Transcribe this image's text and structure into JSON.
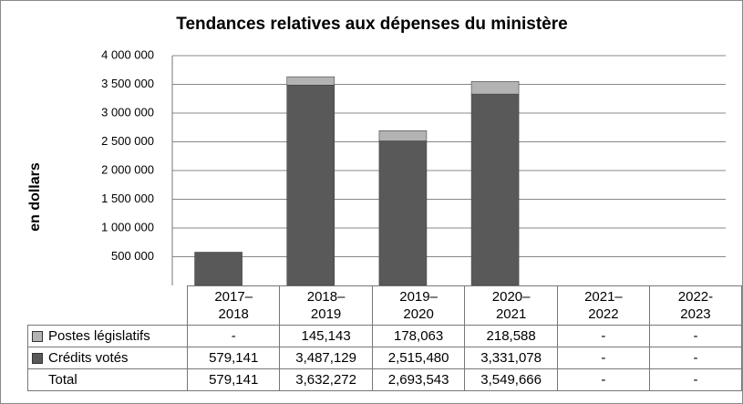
{
  "chart_data": {
    "type": "stacked_bar",
    "title": "Tendances relatives aux dépenses du ministère",
    "y_label": "en dollars",
    "categories": [
      "2017–\n2018",
      "2018–\n2019",
      "2019–\n2020",
      "2020–\n2021",
      "2021–\n2022",
      "2022-\n2023"
    ],
    "series": [
      {
        "name": "Crédits votés",
        "color": "#595959",
        "values": [
          579141,
          3487129,
          2515480,
          3331078,
          null,
          null
        ],
        "value_labels": [
          "579,141",
          "3,487,129",
          "2,515,480",
          "3,331,078",
          "-",
          "-"
        ]
      },
      {
        "name": "Postes législatifs",
        "color": "#b3b3b3",
        "values": [
          null,
          145143,
          178063,
          218588,
          null,
          null
        ],
        "value_labels": [
          "-",
          "145,143",
          "178,063",
          "218,588",
          "-",
          "-"
        ]
      }
    ],
    "total": {
      "name": "Total",
      "values": [
        579141,
        3632272,
        2693543,
        3549666,
        null,
        null
      ],
      "value_labels": [
        "579,141",
        "3,632,272",
        "2,693,543",
        "3,549,666",
        "-",
        "-"
      ]
    },
    "ylim": [
      0,
      4000000
    ],
    "yticks": [
      {
        "value": 500000,
        "label": "500 000"
      },
      {
        "value": 1000000,
        "label": "1 000 000"
      },
      {
        "value": 1500000,
        "label": "1 500 000"
      },
      {
        "value": 2000000,
        "label": "2 000 000"
      },
      {
        "value": 2500000,
        "label": "2 500 000"
      },
      {
        "value": 3000000,
        "label": "3 000 000"
      },
      {
        "value": 3500000,
        "label": "3 500 000"
      },
      {
        "value": 4000000,
        "label": "4 000 000"
      }
    ],
    "grid": true
  }
}
